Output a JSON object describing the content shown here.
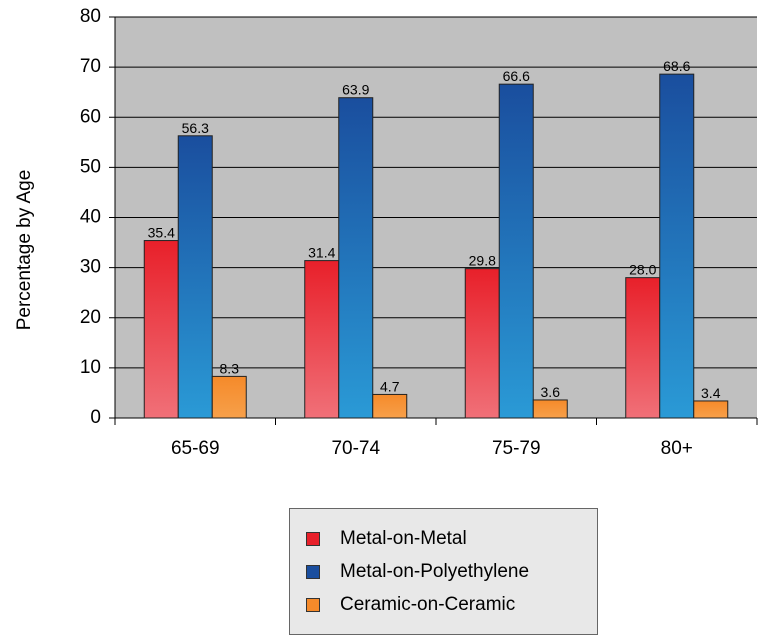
{
  "chart_data": {
    "type": "bar",
    "title": "",
    "xlabel": "",
    "ylabel": "Percentage by Age",
    "ylim": [
      0,
      80
    ],
    "yticks": [
      "0",
      "10",
      "20",
      "30",
      "40",
      "50",
      "60",
      "70",
      "80"
    ],
    "categories": [
      "65-69",
      "70-74",
      "75-79",
      "80+"
    ],
    "series": [
      {
        "name": "Metal-on-Metal",
        "values": [
          35.4,
          31.4,
          29.8,
          28.0
        ],
        "labels": [
          "35.4",
          "31.4",
          "29.8",
          "28.0"
        ]
      },
      {
        "name": "Metal-on-Polyethylene",
        "values": [
          56.3,
          63.9,
          66.6,
          68.6
        ],
        "labels": [
          "56.3",
          "63.9",
          "66.6",
          "68.6"
        ]
      },
      {
        "name": "Ceramic-on-Ceramic",
        "values": [
          8.3,
          4.7,
          3.6,
          3.4
        ],
        "labels": [
          "8.3",
          "4.7",
          "3.6",
          "3.4"
        ]
      }
    ],
    "grid": true,
    "legend_position": "bottom",
    "colors": {
      "plot_background": "#c0c0c0",
      "gridline": "#000000",
      "series": [
        "#e8202a",
        "#1a4e9e",
        "#f58a2a"
      ],
      "series_gradient_light": [
        "#f07078",
        "#2a9ad6",
        "#f7a04a"
      ]
    }
  }
}
